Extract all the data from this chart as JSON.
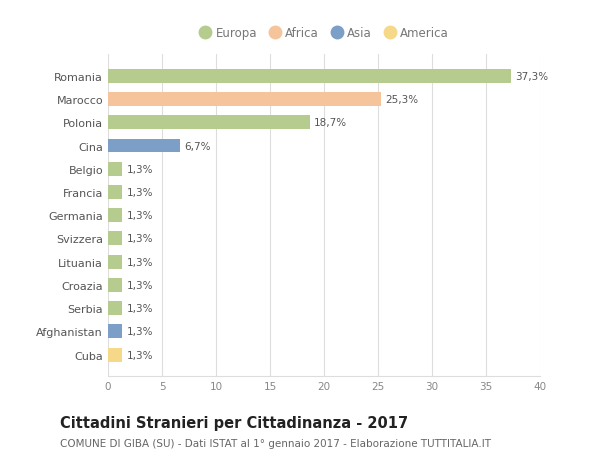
{
  "categories": [
    "Romania",
    "Marocco",
    "Polonia",
    "Cina",
    "Belgio",
    "Francia",
    "Germania",
    "Svizzera",
    "Lituania",
    "Croazia",
    "Serbia",
    "Afghanistan",
    "Cuba"
  ],
  "values": [
    37.3,
    25.3,
    18.7,
    6.7,
    1.3,
    1.3,
    1.3,
    1.3,
    1.3,
    1.3,
    1.3,
    1.3,
    1.3
  ],
  "labels": [
    "37,3%",
    "25,3%",
    "18,7%",
    "6,7%",
    "1,3%",
    "1,3%",
    "1,3%",
    "1,3%",
    "1,3%",
    "1,3%",
    "1,3%",
    "1,3%",
    "1,3%"
  ],
  "colors": [
    "#b5cc8e",
    "#f5c49a",
    "#b5cc8e",
    "#7b9fc7",
    "#b5cc8e",
    "#b5cc8e",
    "#b5cc8e",
    "#b5cc8e",
    "#b5cc8e",
    "#b5cc8e",
    "#b5cc8e",
    "#7b9fc7",
    "#f5d888"
  ],
  "legend": [
    {
      "label": "Europa",
      "color": "#b5cc8e"
    },
    {
      "label": "Africa",
      "color": "#f5c49a"
    },
    {
      "label": "Asia",
      "color": "#7b9fc7"
    },
    {
      "label": "America",
      "color": "#f5d888"
    }
  ],
  "xlim": [
    0,
    40
  ],
  "xticks": [
    0,
    5,
    10,
    15,
    20,
    25,
    30,
    35,
    40
  ],
  "title": "Cittadini Stranieri per Cittadinanza - 2017",
  "subtitle": "COMUNE DI GIBA (SU) - Dati ISTAT al 1° gennaio 2017 - Elaborazione TUTTITALIA.IT",
  "title_fontsize": 10.5,
  "subtitle_fontsize": 7.5,
  "background_color": "#ffffff",
  "grid_color": "#dddddd",
  "bar_height": 0.6
}
